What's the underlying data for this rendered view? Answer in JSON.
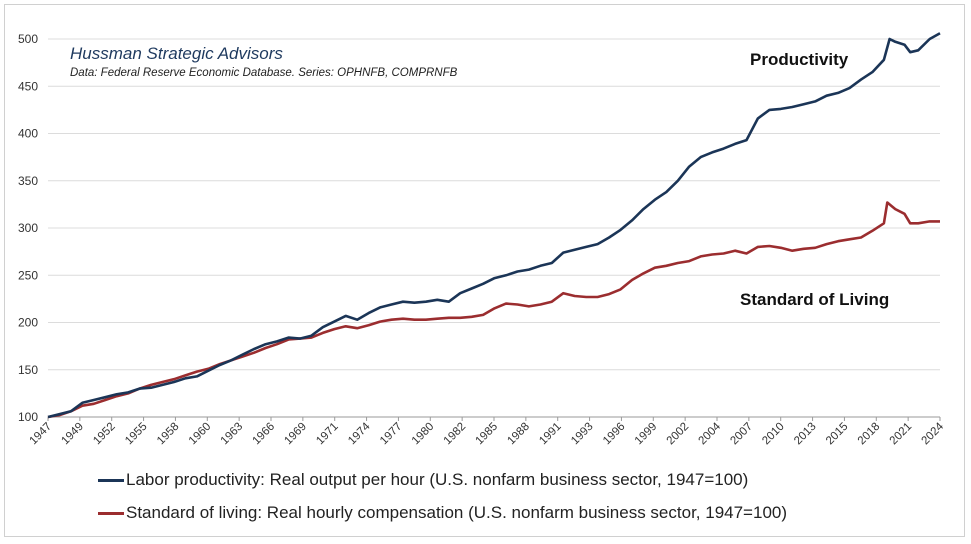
{
  "chart_data": {
    "type": "line",
    "credit": "Hussman Strategic Advisors",
    "source": "Data: Federal Reserve Economic Database. Series: OPHNFB, COMPRNFB",
    "xlim": [
      1947,
      2024.9
    ],
    "ylim": [
      100,
      500
    ],
    "yticks": [
      100,
      150,
      200,
      250,
      300,
      350,
      400,
      450,
      500
    ],
    "xtick_labels": [
      "1947",
      "1949",
      "1952",
      "1955",
      "1958",
      "1960",
      "1963",
      "1966",
      "1969",
      "1971",
      "1974",
      "1977",
      "1980",
      "1982",
      "1985",
      "1988",
      "1991",
      "1993",
      "1996",
      "1999",
      "2002",
      "2004",
      "2007",
      "2010",
      "2013",
      "2015",
      "2018",
      "2021",
      "2024"
    ],
    "grid": "horizontal",
    "legend_position": "bottom",
    "annotations": [
      {
        "text": "Productivity",
        "series": 0
      },
      {
        "text": "Standard of Living",
        "series": 1
      }
    ],
    "series": [
      {
        "name": "Labor productivity: Real output per hour (U.S. nonfarm business sector, 1947=100)",
        "color": "#1b3557",
        "points": [
          [
            1947,
            100
          ],
          [
            1948,
            103
          ],
          [
            1949,
            106
          ],
          [
            1950,
            115
          ],
          [
            1951,
            118
          ],
          [
            1952,
            121
          ],
          [
            1953,
            124
          ],
          [
            1954,
            126
          ],
          [
            1955,
            130
          ],
          [
            1956,
            131
          ],
          [
            1957,
            134
          ],
          [
            1958,
            137
          ],
          [
            1959,
            141
          ],
          [
            1960,
            143
          ],
          [
            1961,
            149
          ],
          [
            1962,
            155
          ],
          [
            1963,
            160
          ],
          [
            1964,
            166
          ],
          [
            1965,
            172
          ],
          [
            1966,
            177
          ],
          [
            1967,
            180
          ],
          [
            1968,
            184
          ],
          [
            1969,
            183
          ],
          [
            1970,
            186
          ],
          [
            1971,
            195
          ],
          [
            1972,
            201
          ],
          [
            1973,
            207
          ],
          [
            1974,
            203
          ],
          [
            1975,
            210
          ],
          [
            1976,
            216
          ],
          [
            1977,
            219
          ],
          [
            1978,
            222
          ],
          [
            1979,
            221
          ],
          [
            1980,
            222
          ],
          [
            1981,
            224
          ],
          [
            1982,
            222
          ],
          [
            1983,
            231
          ],
          [
            1984,
            236
          ],
          [
            1985,
            241
          ],
          [
            1986,
            247
          ],
          [
            1987,
            250
          ],
          [
            1988,
            254
          ],
          [
            1989,
            256
          ],
          [
            1990,
            260
          ],
          [
            1991,
            263
          ],
          [
            1992,
            274
          ],
          [
            1993,
            277
          ],
          [
            1994,
            280
          ],
          [
            1995,
            283
          ],
          [
            1996,
            290
          ],
          [
            1997,
            298
          ],
          [
            1998,
            308
          ],
          [
            1999,
            320
          ],
          [
            2000,
            330
          ],
          [
            2001,
            338
          ],
          [
            2002,
            350
          ],
          [
            2003,
            365
          ],
          [
            2004,
            375
          ],
          [
            2005,
            380
          ],
          [
            2006,
            384
          ],
          [
            2007,
            389
          ],
          [
            2008,
            393
          ],
          [
            2009,
            416
          ],
          [
            2010,
            425
          ],
          [
            2011,
            426
          ],
          [
            2012,
            428
          ],
          [
            2013,
            431
          ],
          [
            2014,
            434
          ],
          [
            2015,
            440
          ],
          [
            2016,
            443
          ],
          [
            2017,
            448
          ],
          [
            2018,
            457
          ],
          [
            2019,
            465
          ],
          [
            2020,
            478
          ],
          [
            2020.5,
            500
          ],
          [
            2021,
            497
          ],
          [
            2021.8,
            494
          ],
          [
            2022.3,
            486
          ],
          [
            2023,
            488
          ],
          [
            2024,
            500
          ],
          [
            2024.9,
            506
          ]
        ]
      },
      {
        "name": "Standard of living: Real hourly compensation (U.S. nonfarm business sector, 1947=100)",
        "color": "#9b2d2f",
        "points": [
          [
            1947,
            100
          ],
          [
            1948,
            102
          ],
          [
            1949,
            106
          ],
          [
            1950,
            112
          ],
          [
            1951,
            114
          ],
          [
            1952,
            118
          ],
          [
            1953,
            122
          ],
          [
            1954,
            125
          ],
          [
            1955,
            130
          ],
          [
            1956,
            134
          ],
          [
            1957,
            137
          ],
          [
            1958,
            140
          ],
          [
            1959,
            144
          ],
          [
            1960,
            148
          ],
          [
            1961,
            151
          ],
          [
            1962,
            156
          ],
          [
            1963,
            160
          ],
          [
            1964,
            164
          ],
          [
            1965,
            168
          ],
          [
            1966,
            173
          ],
          [
            1967,
            177
          ],
          [
            1968,
            182
          ],
          [
            1969,
            183
          ],
          [
            1970,
            184
          ],
          [
            1971,
            189
          ],
          [
            1972,
            193
          ],
          [
            1973,
            196
          ],
          [
            1974,
            194
          ],
          [
            1975,
            197
          ],
          [
            1976,
            201
          ],
          [
            1977,
            203
          ],
          [
            1978,
            204
          ],
          [
            1979,
            203
          ],
          [
            1980,
            203
          ],
          [
            1981,
            204
          ],
          [
            1982,
            205
          ],
          [
            1983,
            205
          ],
          [
            1984,
            206
          ],
          [
            1985,
            208
          ],
          [
            1986,
            215
          ],
          [
            1987,
            220
          ],
          [
            1988,
            219
          ],
          [
            1989,
            217
          ],
          [
            1990,
            219
          ],
          [
            1991,
            222
          ],
          [
            1992,
            231
          ],
          [
            1993,
            228
          ],
          [
            1994,
            227
          ],
          [
            1995,
            227
          ],
          [
            1996,
            230
          ],
          [
            1997,
            235
          ],
          [
            1998,
            245
          ],
          [
            1999,
            252
          ],
          [
            2000,
            258
          ],
          [
            2001,
            260
          ],
          [
            2002,
            263
          ],
          [
            2003,
            265
          ],
          [
            2004,
            270
          ],
          [
            2005,
            272
          ],
          [
            2006,
            273
          ],
          [
            2007,
            276
          ],
          [
            2008,
            273
          ],
          [
            2009,
            280
          ],
          [
            2010,
            281
          ],
          [
            2011,
            279
          ],
          [
            2012,
            276
          ],
          [
            2013,
            278
          ],
          [
            2014,
            279
          ],
          [
            2015,
            283
          ],
          [
            2016,
            286
          ],
          [
            2017,
            288
          ],
          [
            2018,
            290
          ],
          [
            2019,
            297
          ],
          [
            2020,
            305
          ],
          [
            2020.3,
            327
          ],
          [
            2021,
            320
          ],
          [
            2021.8,
            315
          ],
          [
            2022.3,
            305
          ],
          [
            2023,
            305
          ],
          [
            2024,
            307
          ],
          [
            2024.9,
            307
          ]
        ]
      }
    ]
  }
}
